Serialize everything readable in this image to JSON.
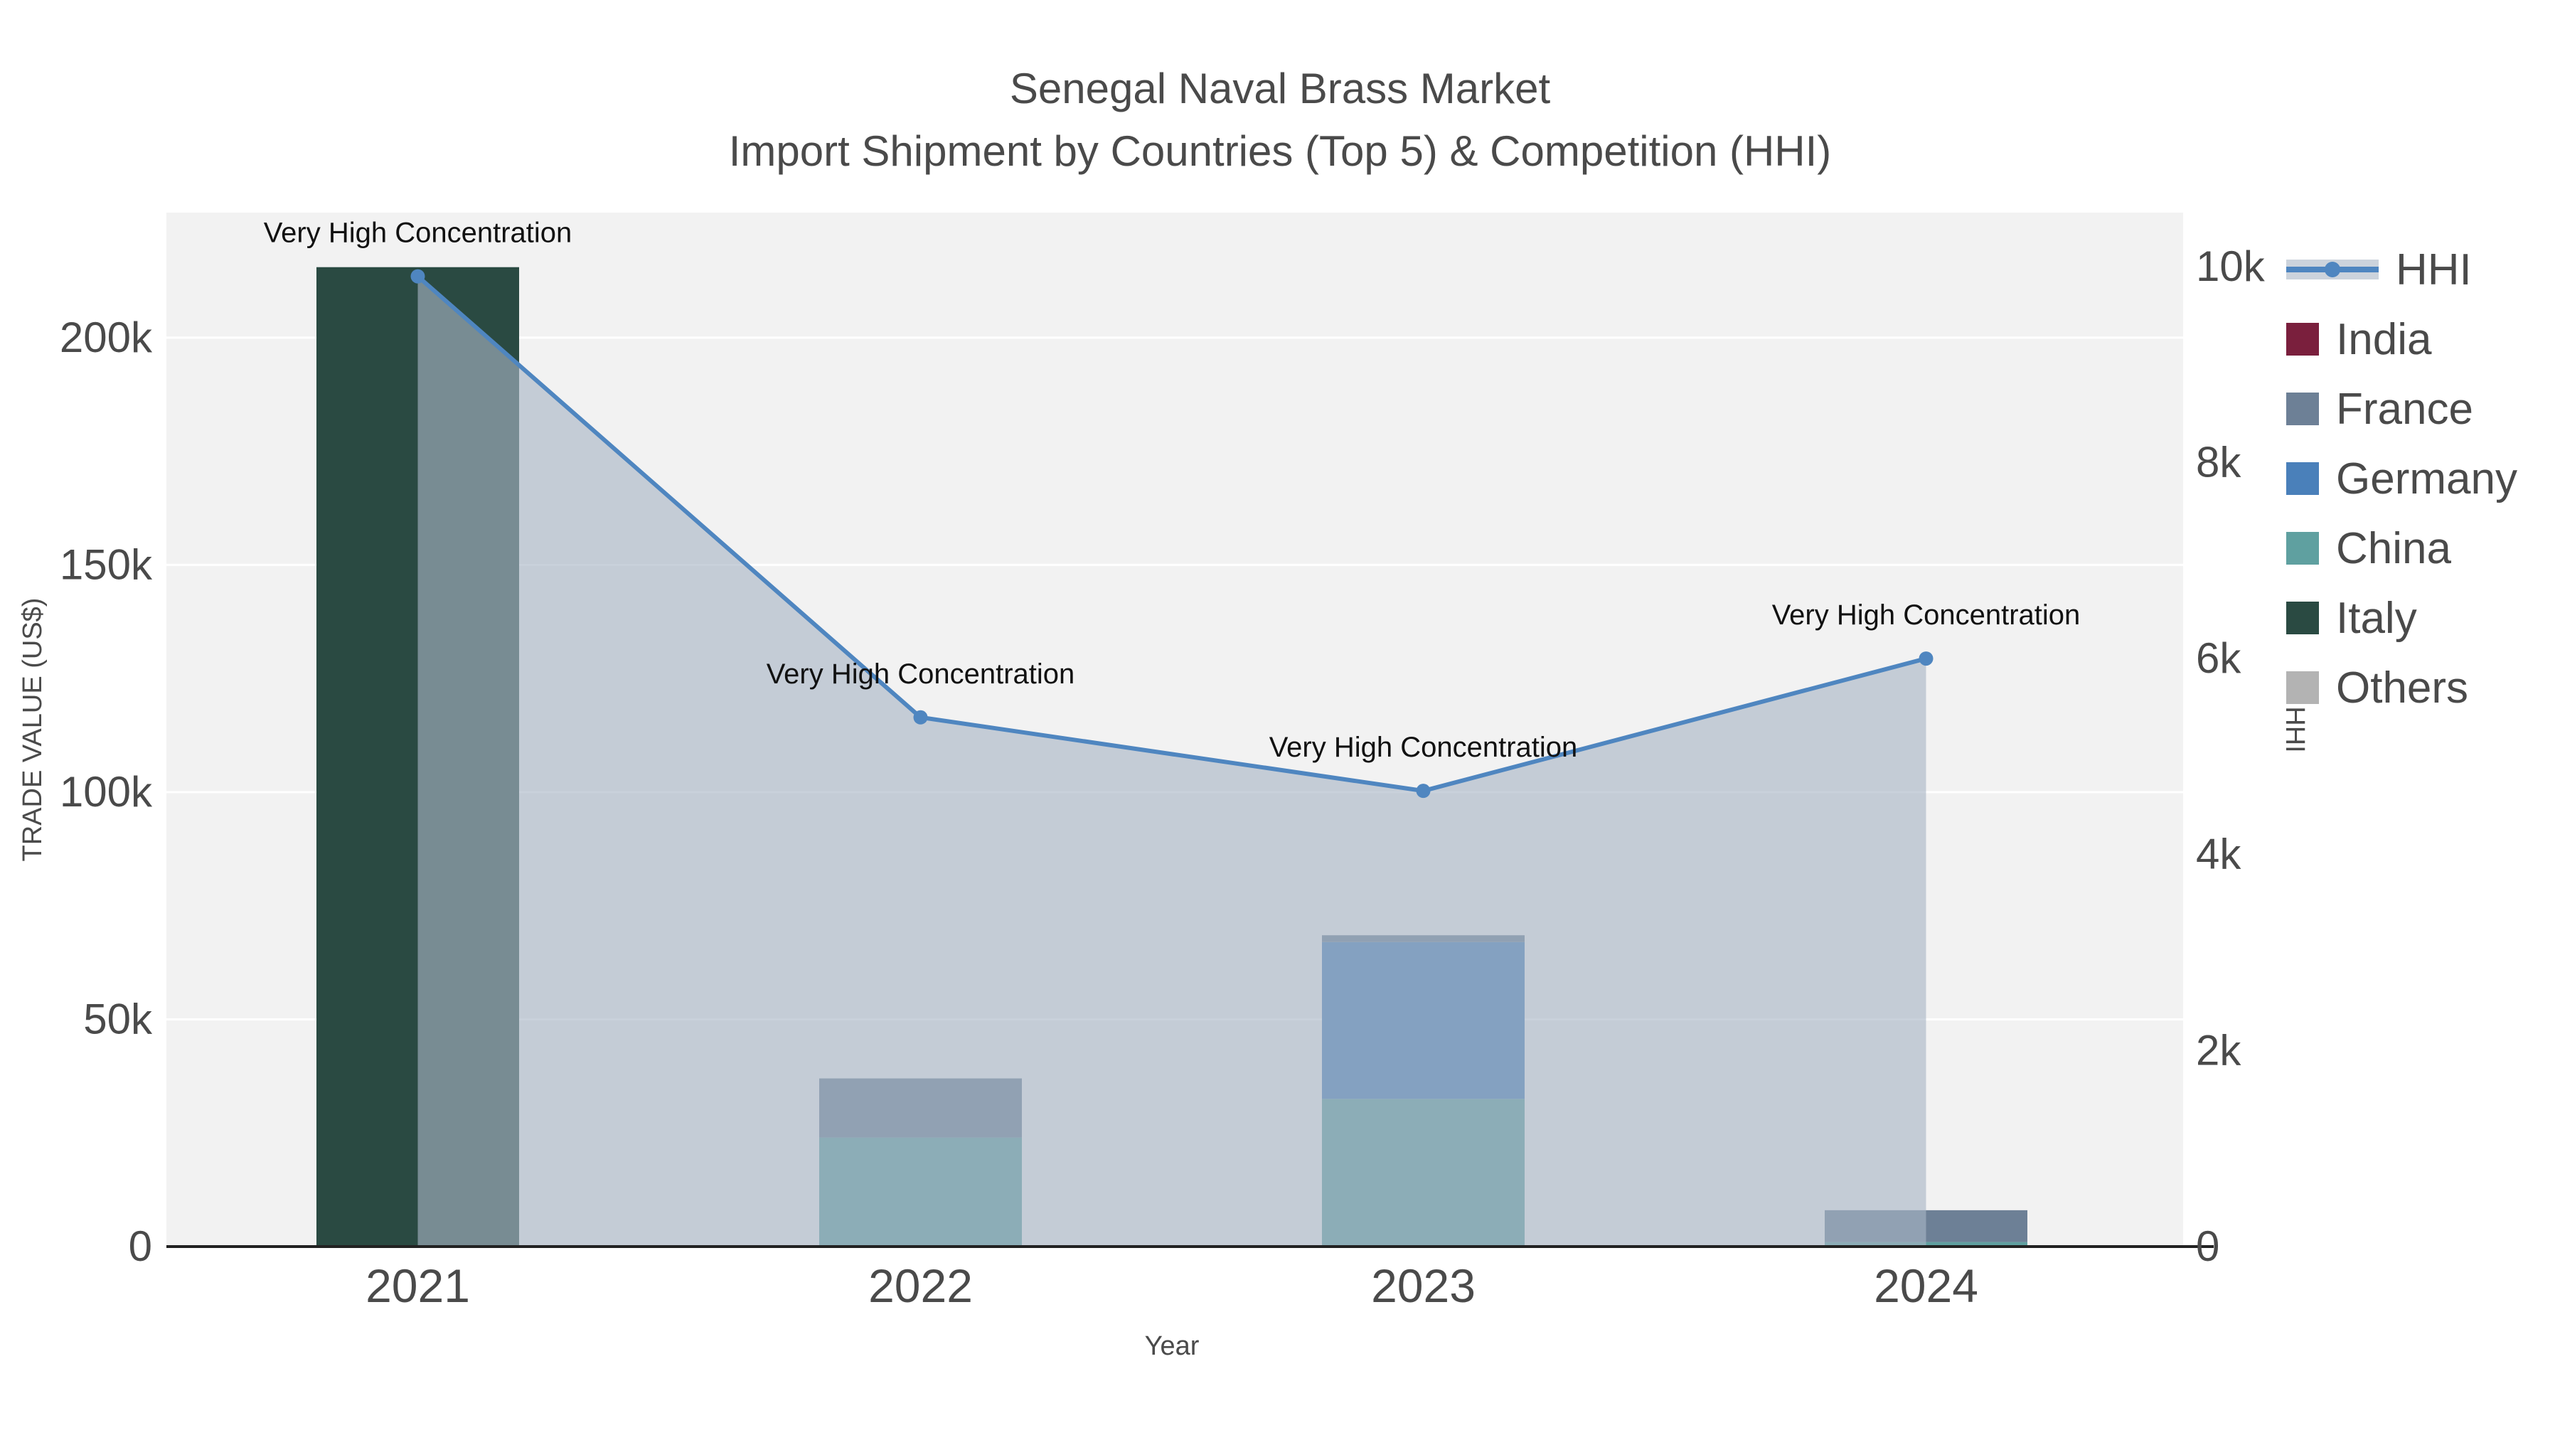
{
  "chart_data": {
    "type": "combo",
    "title": "Senegal Naval Brass Market",
    "subtitle": "Import Shipment by Countries (Top 5) & Competition (HHI)",
    "categories": [
      "2021",
      "2022",
      "2023",
      "2024"
    ],
    "x_label": "Year",
    "left_axis": {
      "label": "TRADE VALUE (US$)",
      "range": [
        0,
        227500
      ],
      "tick_values": [
        0,
        50000,
        100000,
        150000,
        200000
      ],
      "tick_labels": [
        "0",
        "50k",
        "100k",
        "150k",
        "200k"
      ]
    },
    "right_axis": {
      "label": "HHI",
      "range": [
        0,
        10550
      ],
      "tick_values": [
        0,
        2000,
        4000,
        6000,
        8000,
        10000
      ],
      "tick_labels": [
        "0",
        "2k",
        "4k",
        "6k",
        "8k",
        "10k"
      ]
    },
    "bar_series_stack_order": [
      "Others",
      "Italy",
      "China",
      "Germany",
      "France",
      "India"
    ],
    "bar_series": {
      "India": {
        "color": "#7a1f3d",
        "values": [
          0,
          0,
          0,
          0
        ]
      },
      "France": {
        "color": "#6d8096",
        "values": [
          0,
          13000,
          1500,
          7000
        ]
      },
      "Germany": {
        "color": "#4a80ba",
        "values": [
          0,
          0,
          34500,
          0
        ]
      },
      "China": {
        "color": "#5fa0a0",
        "values": [
          0,
          24000,
          32500,
          1000
        ]
      },
      "Italy": {
        "color": "#2a4a42",
        "values": [
          215500,
          0,
          0,
          0
        ]
      },
      "Others": {
        "color": "#b3b3b3",
        "values": [
          0,
          0,
          0,
          0
        ]
      }
    },
    "line_series": {
      "name": "HHI",
      "color": "#4f86c0",
      "fill": "rgba(168,181,197,0.62)",
      "values": [
        9900,
        5400,
        4650,
        6000
      ]
    },
    "annotations": [
      {
        "text": "Very High Concentration",
        "category_index": 0
      },
      {
        "text": "Very High Concentration",
        "category_index": 1
      },
      {
        "text": "Very High Concentration",
        "category_index": 2
      },
      {
        "text": "Very High Concentration",
        "category_index": 3
      }
    ],
    "legend": [
      {
        "name": "HHI",
        "type": "line",
        "color": "#4f86c0"
      },
      {
        "name": "India",
        "type": "swatch",
        "color": "#7a1f3d"
      },
      {
        "name": "France",
        "type": "swatch",
        "color": "#6d8096"
      },
      {
        "name": "Germany",
        "type": "swatch",
        "color": "#4a80ba"
      },
      {
        "name": "China",
        "type": "swatch",
        "color": "#5fa0a0"
      },
      {
        "name": "Italy",
        "type": "swatch",
        "color": "#2a4a42"
      },
      {
        "name": "Others",
        "type": "swatch",
        "color": "#b3b3b3"
      }
    ],
    "plot_bg": "#f2f2f2",
    "grid_color": "#ffffff",
    "text_color": "#4a4a4a",
    "annotation_color": "#111111",
    "axis_line_color": "#222222"
  }
}
